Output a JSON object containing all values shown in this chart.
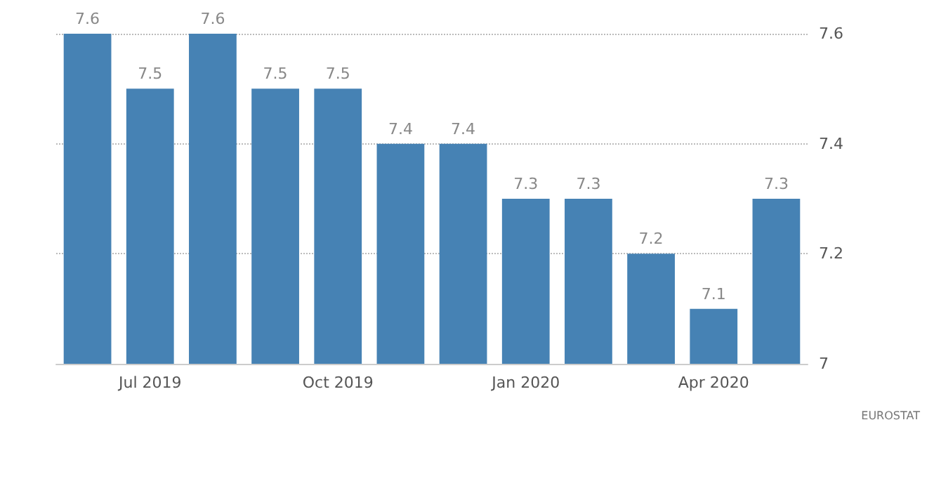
{
  "chart_data": {
    "type": "bar",
    "categories": [
      null,
      "Jul 2019",
      null,
      null,
      "Oct 2019",
      null,
      null,
      "Jan 2020",
      null,
      null,
      "Apr 2020",
      null
    ],
    "values": [
      7.6,
      7.5,
      7.6,
      7.5,
      7.5,
      7.4,
      7.4,
      7.3,
      7.3,
      7.2,
      7.1,
      7.3
    ],
    "color": "#4682b4",
    "data_labels": true,
    "ylim": [
      7,
      7.6
    ],
    "yticks": [
      7,
      7.2,
      7.4,
      7.6
    ],
    "grid": "y",
    "annotations": [
      "EUROSTAT"
    ]
  }
}
